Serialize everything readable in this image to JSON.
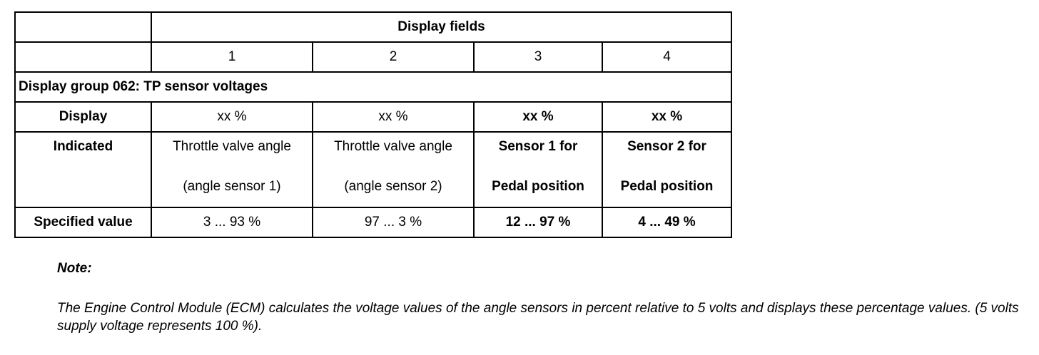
{
  "table": {
    "header": "Display fields",
    "columns": [
      "1",
      "2",
      "3",
      "4"
    ],
    "group": "Display group 062: TP sensor voltages",
    "rows": [
      {
        "label": "Display",
        "cells": [
          "xx %",
          "xx %",
          "xx %",
          "xx %"
        ]
      },
      {
        "label": "Indicated",
        "cells": [
          [
            "Throttle valve angle",
            "(angle sensor 1)"
          ],
          [
            "Throttle valve angle",
            "(angle sensor 2)"
          ],
          [
            "Sensor 1 for",
            "Pedal position"
          ],
          [
            "Sensor 2 for",
            "Pedal position"
          ]
        ]
      },
      {
        "label": "Specified value",
        "cells": [
          "3 ... 93 %",
          "97 ... 3 %",
          "12 ... 97 %",
          "4 ... 49 %"
        ]
      }
    ]
  },
  "note": {
    "title": "Note:",
    "text": "The Engine Control Module (ECM) calculates the voltage values of the angle sensors in percent relative to 5 volts and displays these percentage values. (5 volts supply voltage represents 100 %)."
  }
}
